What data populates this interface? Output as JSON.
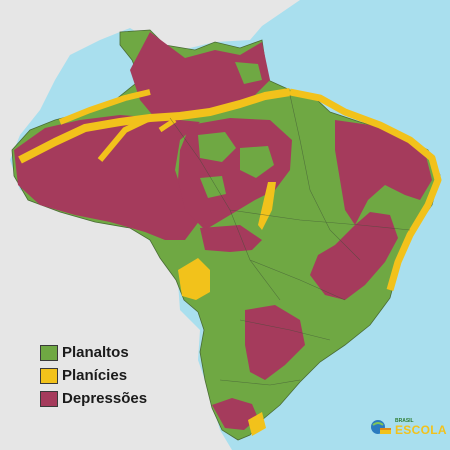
{
  "legend": {
    "items": [
      {
        "label": "Planaltos",
        "color": "#6fa843"
      },
      {
        "label": "Planícies",
        "color": "#f2c21b"
      },
      {
        "label": "Depressões",
        "color": "#a53b5c"
      }
    ]
  },
  "colors": {
    "sea": "#a9dfee",
    "neighbor_land": "#e6e6e6",
    "planaltos": "#6fa843",
    "planicies": "#f2c21b",
    "depressoes": "#a53b5c"
  },
  "logo": {
    "small": "BRASIL",
    "big": "ESCOLA"
  }
}
